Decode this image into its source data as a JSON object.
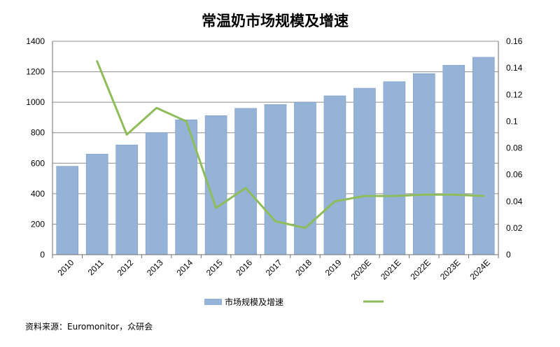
{
  "chart_data": {
    "type": "bar",
    "title": "常温奶市场规模及增速",
    "categories": [
      "2010",
      "2011",
      "2012",
      "2013",
      "2014",
      "2015",
      "2016",
      "2017",
      "2018",
      "2019",
      "2020E",
      "2021E",
      "2022E",
      "2023E",
      "2024E"
    ],
    "series": [
      {
        "name": "市场规模及增速",
        "type": "bar",
        "axis": "left",
        "color": "#95b3d7",
        "values": [
          580,
          660,
          720,
          800,
          885,
          912,
          960,
          985,
          1000,
          1042,
          1092,
          1135,
          1188,
          1243,
          1295
        ]
      },
      {
        "name": "",
        "type": "line",
        "axis": "right",
        "color": "#8fbc5a",
        "values": [
          null,
          0.145,
          0.09,
          0.11,
          0.1,
          0.035,
          0.05,
          0.025,
          0.02,
          0.04,
          0.044,
          0.044,
          0.045,
          0.045,
          0.044
        ]
      }
    ],
    "y_left": {
      "min": 0,
      "max": 1400,
      "step": 200,
      "ticks": [
        "0",
        "200",
        "400",
        "600",
        "800",
        "1000",
        "1200",
        "1400"
      ]
    },
    "y_right": {
      "min": 0,
      "max": 0.16,
      "step": 0.02,
      "ticks": [
        "0",
        "0.02",
        "0.04",
        "0.06",
        "0.08",
        "0.1",
        "0.12",
        "0.14",
        "0.16"
      ]
    },
    "grid": true,
    "legend_position": "bottom",
    "source": "资料来源：Euromonitor，众研会"
  }
}
